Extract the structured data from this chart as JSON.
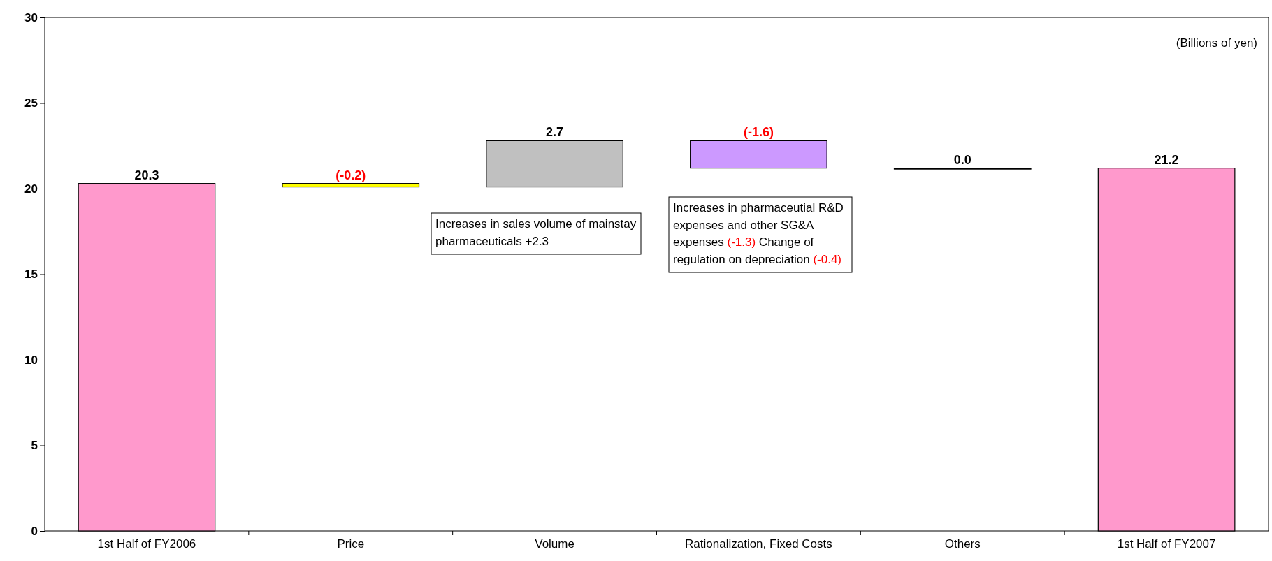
{
  "chart_data": {
    "type": "bar",
    "categories": [
      "1st Half of FY2006",
      "Price",
      "Volume",
      "Rationalization, Fixed Costs",
      "Others",
      "1st Half of FY2007"
    ],
    "values": [
      20.3,
      -0.2,
      2.7,
      -1.6,
      0.0,
      21.2
    ],
    "base": [
      0,
      20.3,
      20.1,
      22.8,
      21.2,
      0
    ],
    "colors": [
      "#ff99cc",
      "#ffff00",
      "#c0c0c0",
      "#cc99ff",
      "#000000",
      "#ff99cc"
    ],
    "value_labels": [
      "20.3",
      "(-0.2)",
      "2.7",
      "(-1.6)",
      "0.0",
      "21.2"
    ],
    "ylim": [
      0,
      30
    ],
    "yticks": [
      0,
      5,
      10,
      15,
      20,
      25,
      30
    ],
    "grid": false,
    "annotations": [
      "(Billions of yen)",
      "Increases in sales volume of mainstay pharmaceuticals +2.3",
      "Increases in pharmaceutial R&D expenses and other SG&A expenses (-1.3) Change of regulation on depreciation (-0.4)"
    ]
  }
}
